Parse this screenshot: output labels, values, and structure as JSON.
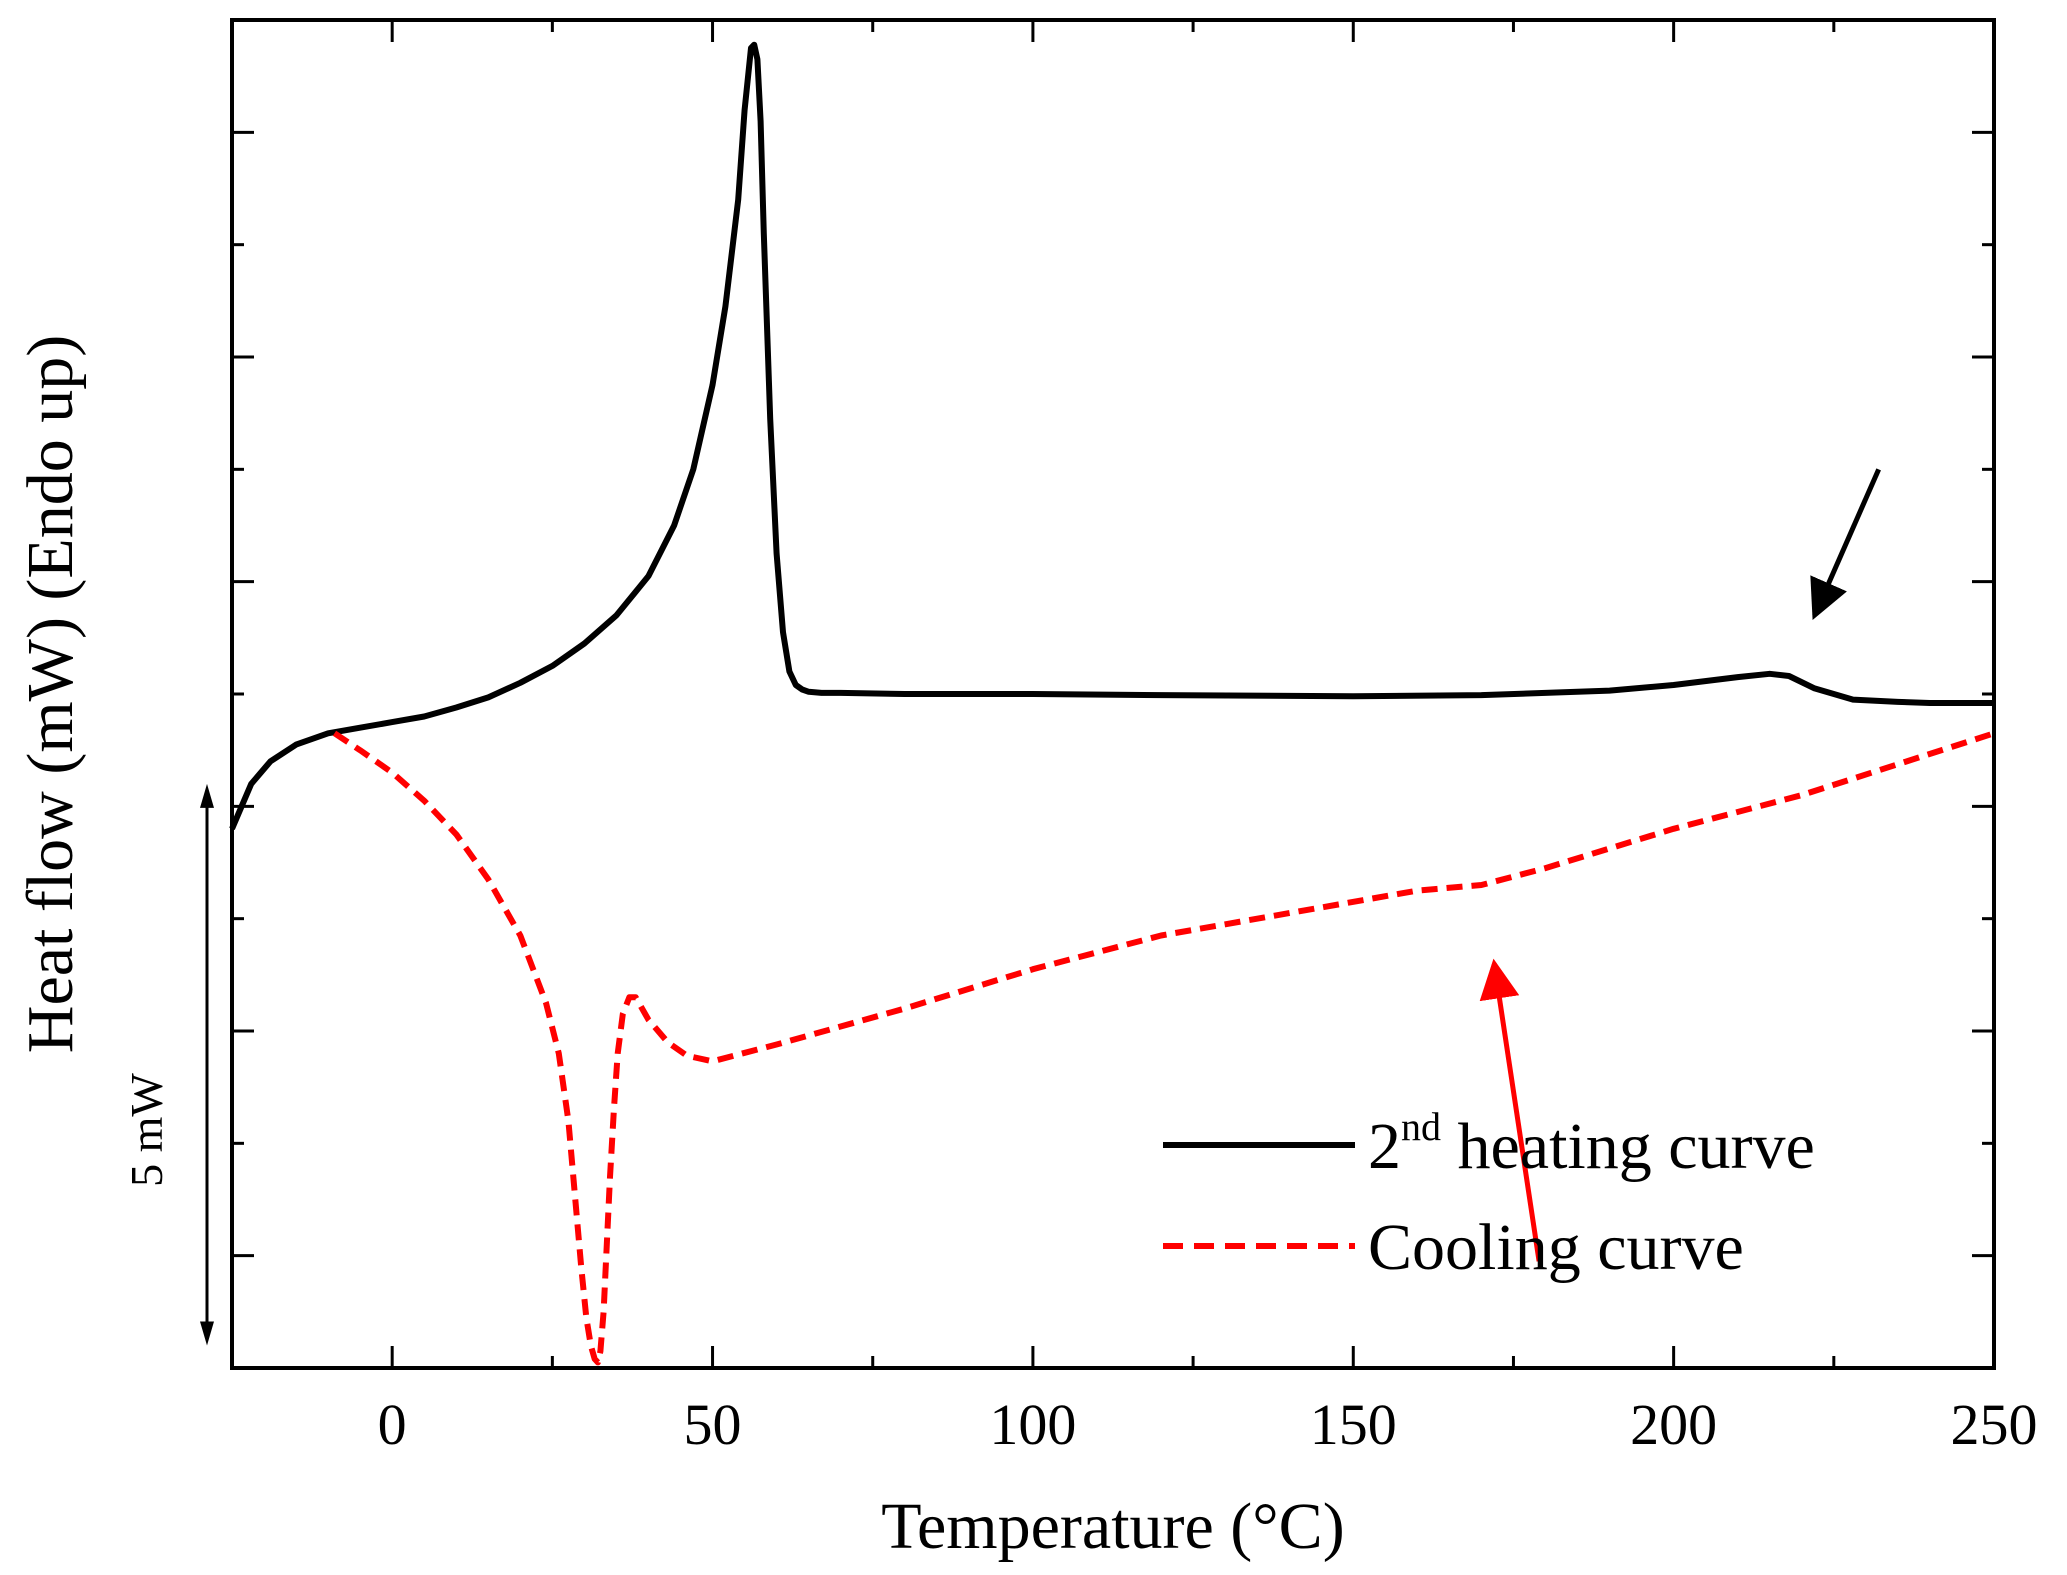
{
  "chart_data": {
    "type": "line",
    "title": "",
    "xlabel": "Temperature (°C)",
    "ylabel": "Heat flow (mW) (Endo up)",
    "xlim": [
      -25,
      250
    ],
    "ylim": [
      -3.0,
      9.0
    ],
    "x_ticks": [
      0,
      50,
      100,
      150,
      200,
      250
    ],
    "y_ticks_unlabeled": true,
    "legend_position": "bottom-right",
    "scale_bar": {
      "label": "5 mW",
      "value": 5
    },
    "series": [
      {
        "name": "heating",
        "legend_prefix": "2",
        "legend_sup": "nd",
        "legend_suffix": " heating curve",
        "color": "#000000",
        "dash": "solid",
        "x": [
          -25,
          -22,
          -19,
          -15,
          -10,
          -5,
          0,
          5,
          10,
          15,
          20,
          25,
          30,
          35,
          40,
          44,
          47,
          50,
          52,
          54,
          55,
          56,
          56.5,
          57,
          57.5,
          58,
          59,
          60,
          61,
          62,
          63,
          64,
          65,
          67,
          70,
          80,
          100,
          120,
          150,
          170,
          190,
          200,
          210,
          215,
          218,
          222,
          228,
          235,
          240,
          250
        ],
        "y": [
          1.8,
          2.2,
          2.4,
          2.55,
          2.65,
          2.7,
          2.75,
          2.8,
          2.88,
          2.97,
          3.1,
          3.25,
          3.45,
          3.7,
          4.05,
          4.5,
          5.0,
          5.75,
          6.45,
          7.4,
          8.2,
          8.75,
          8.78,
          8.65,
          8.1,
          7.1,
          5.45,
          4.25,
          3.55,
          3.2,
          3.08,
          3.04,
          3.02,
          3.01,
          3.01,
          3.0,
          3.0,
          2.99,
          2.98,
          2.99,
          3.03,
          3.08,
          3.15,
          3.18,
          3.16,
          3.05,
          2.95,
          2.93,
          2.92,
          2.92
        ]
      },
      {
        "name": "cooling",
        "legend_label": "Cooling curve",
        "color": "#ff0000",
        "dash": "dashed",
        "x": [
          -9,
          -5,
          0,
          5,
          10,
          15,
          20,
          24,
          26,
          27.5,
          28.5,
          29.5,
          30.3,
          31,
          31.6,
          32.1,
          32.5,
          33,
          33.5,
          34,
          34.6,
          35.2,
          36,
          37,
          38,
          40,
          43,
          46,
          50,
          60,
          80,
          100,
          120,
          140,
          160,
          170,
          180,
          200,
          220,
          250
        ],
        "y": [
          2.65,
          2.5,
          2.3,
          2.05,
          1.75,
          1.35,
          0.85,
          0.25,
          -0.2,
          -0.8,
          -1.45,
          -2.1,
          -2.55,
          -2.8,
          -2.92,
          -2.95,
          -2.85,
          -2.5,
          -1.9,
          -1.3,
          -0.7,
          -0.2,
          0.15,
          0.3,
          0.3,
          0.1,
          -0.1,
          -0.22,
          -0.27,
          -0.12,
          0.2,
          0.55,
          0.85,
          1.05,
          1.25,
          1.3,
          1.45,
          1.8,
          2.1,
          2.65
        ]
      }
    ],
    "annotations": [
      {
        "type": "arrow",
        "color": "#000000",
        "from": [
          232,
          5.0
        ],
        "to": [
          222,
          3.7
        ]
      },
      {
        "type": "arrow",
        "color": "#ff0000",
        "from": [
          179,
          -2.05
        ],
        "to": [
          172,
          0.6
        ]
      }
    ]
  }
}
